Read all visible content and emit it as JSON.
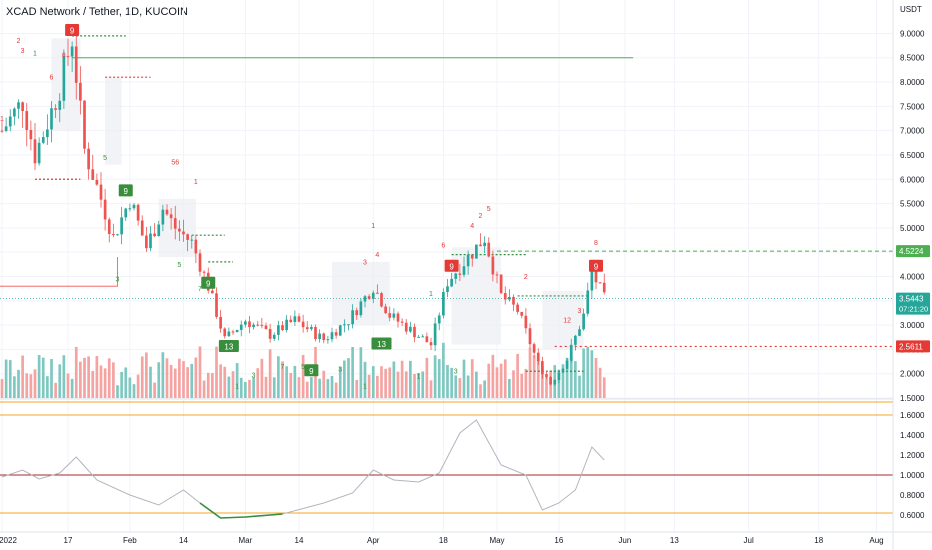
{
  "header": {
    "title": "XCAD Network / Tether, 1D, KUCOIN"
  },
  "price_axis": {
    "currency": "USDT",
    "ticks": [
      "9.0000",
      "8.5000",
      "8.0000",
      "7.5000",
      "7.0000",
      "6.5000",
      "6.0000",
      "5.5000",
      "5.0000",
      "4.5000",
      "4.0000",
      "3.5000",
      "3.0000",
      "2.5000",
      "2.0000",
      "1.5000"
    ]
  },
  "indicator_axis": {
    "ticks": [
      "1.6000",
      "1.4000",
      "1.2000",
      "1.0000",
      "0.8000",
      "0.6000"
    ]
  },
  "time_axis": {
    "ticks": [
      "2022",
      "17",
      "Feb",
      "14",
      "Mar",
      "14",
      "Apr",
      "18",
      "May",
      "16",
      "Jun",
      "13",
      "Jul",
      "18",
      "Aug"
    ]
  },
  "badges": {
    "resistance": "4.5224",
    "last_price": "3.5443",
    "countdown": "07:21:20",
    "support": "2.5611"
  },
  "colors": {
    "up": "#26a69a",
    "down": "#ef5350",
    "volume_up": "#7fc8c1",
    "volume_down": "#f4a3a1",
    "td_green": "#388e3c",
    "td_red": "#e53935",
    "res_line": "#4caf50",
    "orange": "#f5a623",
    "indicator_line": "#b2b5be",
    "indicator_red": "#a52a2a",
    "grid": "#f0f3fa"
  },
  "chart_data": [
    {
      "type": "candlestick",
      "title": "XCAD Network / Tether, 1D, KUCOIN",
      "ylabel": "USDT",
      "ylim": [
        1.5,
        9.4
      ],
      "x_range": [
        "2022-01-01",
        "2022-08-05"
      ],
      "series": [
        {
          "name": "XCAD/USDT",
          "ohlc_keypoints": [
            {
              "x": "2022-01-01",
              "y": 7.0
            },
            {
              "x": "2022-01-06",
              "y": 7.6
            },
            {
              "x": "2022-01-09",
              "y": 6.5
            },
            {
              "x": "2022-01-13",
              "y": 7.4
            },
            {
              "x": "2022-01-15",
              "y": 7.9
            },
            {
              "x": "2022-01-18",
              "y": 8.9
            },
            {
              "x": "2022-01-21",
              "y": 6.6
            },
            {
              "x": "2022-01-25",
              "y": 5.6
            },
            {
              "x": "2022-01-28",
              "y": 4.8
            },
            {
              "x": "2022-02-01",
              "y": 5.6
            },
            {
              "x": "2022-02-05",
              "y": 4.6
            },
            {
              "x": "2022-02-09",
              "y": 5.4
            },
            {
              "x": "2022-02-12",
              "y": 5.0
            },
            {
              "x": "2022-02-16",
              "y": 4.7
            },
            {
              "x": "2022-02-20",
              "y": 3.8
            },
            {
              "x": "2022-02-24",
              "y": 2.7
            },
            {
              "x": "2022-03-01",
              "y": 3.1
            },
            {
              "x": "2022-03-07",
              "y": 2.8
            },
            {
              "x": "2022-03-13",
              "y": 3.1
            },
            {
              "x": "2022-03-20",
              "y": 2.7
            },
            {
              "x": "2022-03-26",
              "y": 3.1
            },
            {
              "x": "2022-04-01",
              "y": 3.8
            },
            {
              "x": "2022-04-05",
              "y": 3.2
            },
            {
              "x": "2022-04-10",
              "y": 2.9
            },
            {
              "x": "2022-04-15",
              "y": 2.6
            },
            {
              "x": "2022-04-19",
              "y": 3.9
            },
            {
              "x": "2022-04-23",
              "y": 4.3
            },
            {
              "x": "2022-04-28",
              "y": 4.8
            },
            {
              "x": "2022-05-02",
              "y": 3.6
            },
            {
              "x": "2022-05-06",
              "y": 3.3
            },
            {
              "x": "2022-05-11",
              "y": 2.2
            },
            {
              "x": "2022-05-14",
              "y": 1.8
            },
            {
              "x": "2022-05-18",
              "y": 2.3
            },
            {
              "x": "2022-05-22",
              "y": 3.2
            },
            {
              "x": "2022-05-24",
              "y": 4.1
            },
            {
              "x": "2022-05-27",
              "y": 3.54
            }
          ]
        }
      ],
      "levels": [
        {
          "name": "resistance",
          "y": 4.5224
        },
        {
          "name": "support",
          "y": 2.5611
        },
        {
          "name": "top line",
          "y": 8.5
        }
      ],
      "volume": "bars beneath price, colored by candle direction"
    },
    {
      "type": "line",
      "ylim": [
        0.45,
        1.7
      ],
      "series": [
        {
          "name": "indicator",
          "points": [
            {
              "x": "2022-01-01",
              "y": 0.98
            },
            {
              "x": "2022-01-06",
              "y": 1.05
            },
            {
              "x": "2022-01-10",
              "y": 0.96
            },
            {
              "x": "2022-01-15",
              "y": 1.02
            },
            {
              "x": "2022-01-19",
              "y": 1.18
            },
            {
              "x": "2022-01-24",
              "y": 0.95
            },
            {
              "x": "2022-02-01",
              "y": 0.8
            },
            {
              "x": "2022-02-08",
              "y": 0.7
            },
            {
              "x": "2022-02-14",
              "y": 0.85
            },
            {
              "x": "2022-02-18",
              "y": 0.72
            },
            {
              "x": "2022-02-23",
              "y": 0.57
            },
            {
              "x": "2022-03-01",
              "y": 0.58
            },
            {
              "x": "2022-03-10",
              "y": 0.61
            },
            {
              "x": "2022-03-20",
              "y": 0.72
            },
            {
              "x": "2022-03-27",
              "y": 0.82
            },
            {
              "x": "2022-04-01",
              "y": 1.05
            },
            {
              "x": "2022-04-06",
              "y": 0.95
            },
            {
              "x": "2022-04-12",
              "y": 0.93
            },
            {
              "x": "2022-04-17",
              "y": 1.02
            },
            {
              "x": "2022-04-22",
              "y": 1.42
            },
            {
              "x": "2022-04-26",
              "y": 1.55
            },
            {
              "x": "2022-05-02",
              "y": 1.1
            },
            {
              "x": "2022-05-08",
              "y": 1.0
            },
            {
              "x": "2022-05-12",
              "y": 0.65
            },
            {
              "x": "2022-05-16",
              "y": 0.72
            },
            {
              "x": "2022-05-20",
              "y": 0.85
            },
            {
              "x": "2022-05-24",
              "y": 1.28
            },
            {
              "x": "2022-05-27",
              "y": 1.15
            }
          ]
        }
      ],
      "levels": [
        {
          "name": "upper",
          "y": 1.6
        },
        {
          "name": "middle",
          "y": 1.0
        },
        {
          "name": "lower",
          "y": 0.62
        }
      ]
    }
  ],
  "td_labels": [
    {
      "t": "9",
      "x": "2022-01-18",
      "y": 9.05,
      "c": "red",
      "boxed": true
    },
    {
      "t": "9",
      "x": "2022-01-31",
      "y": 5.75,
      "c": "green",
      "boxed": true
    },
    {
      "t": "9",
      "x": "2022-02-20",
      "y": 3.85,
      "c": "green",
      "boxed": true
    },
    {
      "t": "13",
      "x": "2022-02-25",
      "y": 2.55,
      "c": "green",
      "boxed": true
    },
    {
      "t": "9",
      "x": "2022-03-17",
      "y": 2.05,
      "c": "green",
      "boxed": true
    },
    {
      "t": "13",
      "x": "2022-04-03",
      "y": 2.6,
      "c": "green",
      "boxed": true
    },
    {
      "t": "9",
      "x": "2022-04-20",
      "y": 4.2,
      "c": "red",
      "boxed": true
    },
    {
      "t": "9",
      "x": "2022-05-25",
      "y": 4.2,
      "c": "red",
      "boxed": true
    },
    {
      "t": "1",
      "x": "2022-01-01",
      "y": 7.2,
      "c": "red"
    },
    {
      "t": "2",
      "x": "2022-01-05",
      "y": 8.8,
      "c": "red"
    },
    {
      "t": "3",
      "x": "2022-01-06",
      "y": 8.6,
      "c": "red"
    },
    {
      "t": "1",
      "x": "2022-01-09",
      "y": 8.55,
      "c": "green"
    },
    {
      "t": "8",
      "x": "2022-01-16",
      "y": 8.5,
      "c": "red"
    },
    {
      "t": "6",
      "x": "2022-01-13",
      "y": 8.05,
      "c": "red"
    },
    {
      "t": "5",
      "x": "2022-01-26",
      "y": 6.4,
      "c": "green"
    },
    {
      "t": "56",
      "x": "2022-02-12",
      "y": 6.3,
      "c": "red"
    },
    {
      "t": "1",
      "x": "2022-02-17",
      "y": 5.9,
      "c": "red"
    },
    {
      "t": "3",
      "x": "2022-01-29",
      "y": 3.9,
      "c": "green"
    },
    {
      "t": "5",
      "x": "2022-02-13",
      "y": 4.2,
      "c": "green"
    },
    {
      "t": "7",
      "x": "2022-02-18",
      "y": 3.7,
      "c": "green"
    },
    {
      "t": "1",
      "x": "2022-02-27",
      "y": 1.7,
      "c": "green"
    },
    {
      "t": "3",
      "x": "2022-03-03",
      "y": 1.92,
      "c": "green"
    },
    {
      "t": "7",
      "x": "2022-03-10",
      "y": 2.1,
      "c": "green"
    },
    {
      "t": "5",
      "x": "2022-03-15",
      "y": 2.1,
      "c": "green"
    },
    {
      "t": "3",
      "x": "2022-03-24",
      "y": 2.05,
      "c": "green"
    },
    {
      "t": "1",
      "x": "2022-03-30",
      "y": 1.7,
      "c": "green"
    },
    {
      "t": "1",
      "x": "2022-04-01",
      "y": 5.0,
      "c": "green"
    },
    {
      "t": "3",
      "x": "2022-03-30",
      "y": 4.25,
      "c": "red"
    },
    {
      "t": "4",
      "x": "2022-04-02",
      "y": 4.4,
      "c": "red"
    },
    {
      "t": "1",
      "x": "2022-04-12",
      "y": 1.9,
      "c": "green"
    },
    {
      "t": "3",
      "x": "2022-04-21",
      "y": 2.0,
      "c": "green"
    },
    {
      "t": "1",
      "x": "2022-04-15",
      "y": 3.6,
      "c": "green"
    },
    {
      "t": "2",
      "x": "2022-04-27",
      "y": 5.2,
      "c": "red"
    },
    {
      "t": "5",
      "x": "2022-04-29",
      "y": 5.35,
      "c": "red"
    },
    {
      "t": "6",
      "x": "2022-04-18",
      "y": 4.6,
      "c": "red"
    },
    {
      "t": "4",
      "x": "2022-04-25",
      "y": 5.0,
      "c": "red"
    },
    {
      "t": "2",
      "x": "2022-05-08",
      "y": 3.95,
      "c": "red"
    },
    {
      "t": "8",
      "x": "2022-05-25",
      "y": 4.65,
      "c": "red"
    },
    {
      "t": "12",
      "x": "2022-05-18",
      "y": 3.05,
      "c": "red"
    },
    {
      "t": "3",
      "x": "2022-05-21",
      "y": 3.25,
      "c": "red"
    }
  ]
}
